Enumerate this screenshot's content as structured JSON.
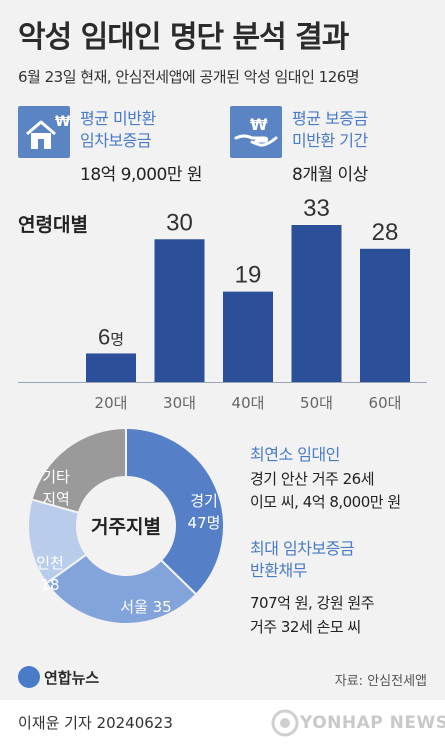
{
  "header": {
    "title": "악성 임대인 명단 분석 결과",
    "subtitle": "6월 23일 현재, 안심전세앱에 공개된 악성 임대인 126명"
  },
  "stats": [
    {
      "icon": "house-won-icon",
      "label_lines": [
        "평균 미반환",
        "임차보증금"
      ],
      "value": "18억 9,000만 원"
    },
    {
      "icon": "hand-won-icon",
      "label_lines": [
        "평균 보증금",
        "미반환 기간"
      ],
      "value": "8개월 이상"
    }
  ],
  "colors": {
    "bar": "#2c4f9a",
    "accent_text": "#4a7bc8",
    "donut": [
      "#5580c8",
      "#83a4da",
      "#b8cdeb",
      "#9a9a9a"
    ]
  },
  "chart_data": [
    {
      "type": "bar",
      "title": "연령대별",
      "categories": [
        "20대",
        "30대",
        "40대",
        "50대",
        "60대"
      ],
      "values": [
        6,
        30,
        19,
        33,
        28
      ],
      "value_labels": [
        "6명",
        "30",
        "19",
        "33",
        "28"
      ],
      "ylim": [
        0,
        33
      ]
    },
    {
      "type": "pie",
      "title": "거주지별",
      "labels": [
        "경기",
        "서울",
        "인천",
        "기타 지역"
      ],
      "values": [
        47,
        35,
        18,
        26
      ],
      "slice_labels": [
        [
          "경기",
          "47명"
        ],
        [
          "서울 35"
        ],
        [
          "인천",
          "18"
        ],
        [
          "기타",
          "지역"
        ]
      ]
    }
  ],
  "info": {
    "youngest": {
      "heading": "최연소 임대인",
      "lines": [
        "경기 안산 거주 26세",
        "이모 씨, 4억 8,000만 원"
      ]
    },
    "largest": {
      "heading_lines": [
        "최대 임차보증금",
        "반환채무"
      ],
      "lines": [
        "707억 원, 강원 원주",
        "거주 32세 손모 씨"
      ]
    }
  },
  "footer": {
    "logo": "연합뉴스",
    "source": "자료: 안심전세앱",
    "credit": "이재윤 기자  20240623",
    "watermark": "YONHAP NEWS"
  }
}
